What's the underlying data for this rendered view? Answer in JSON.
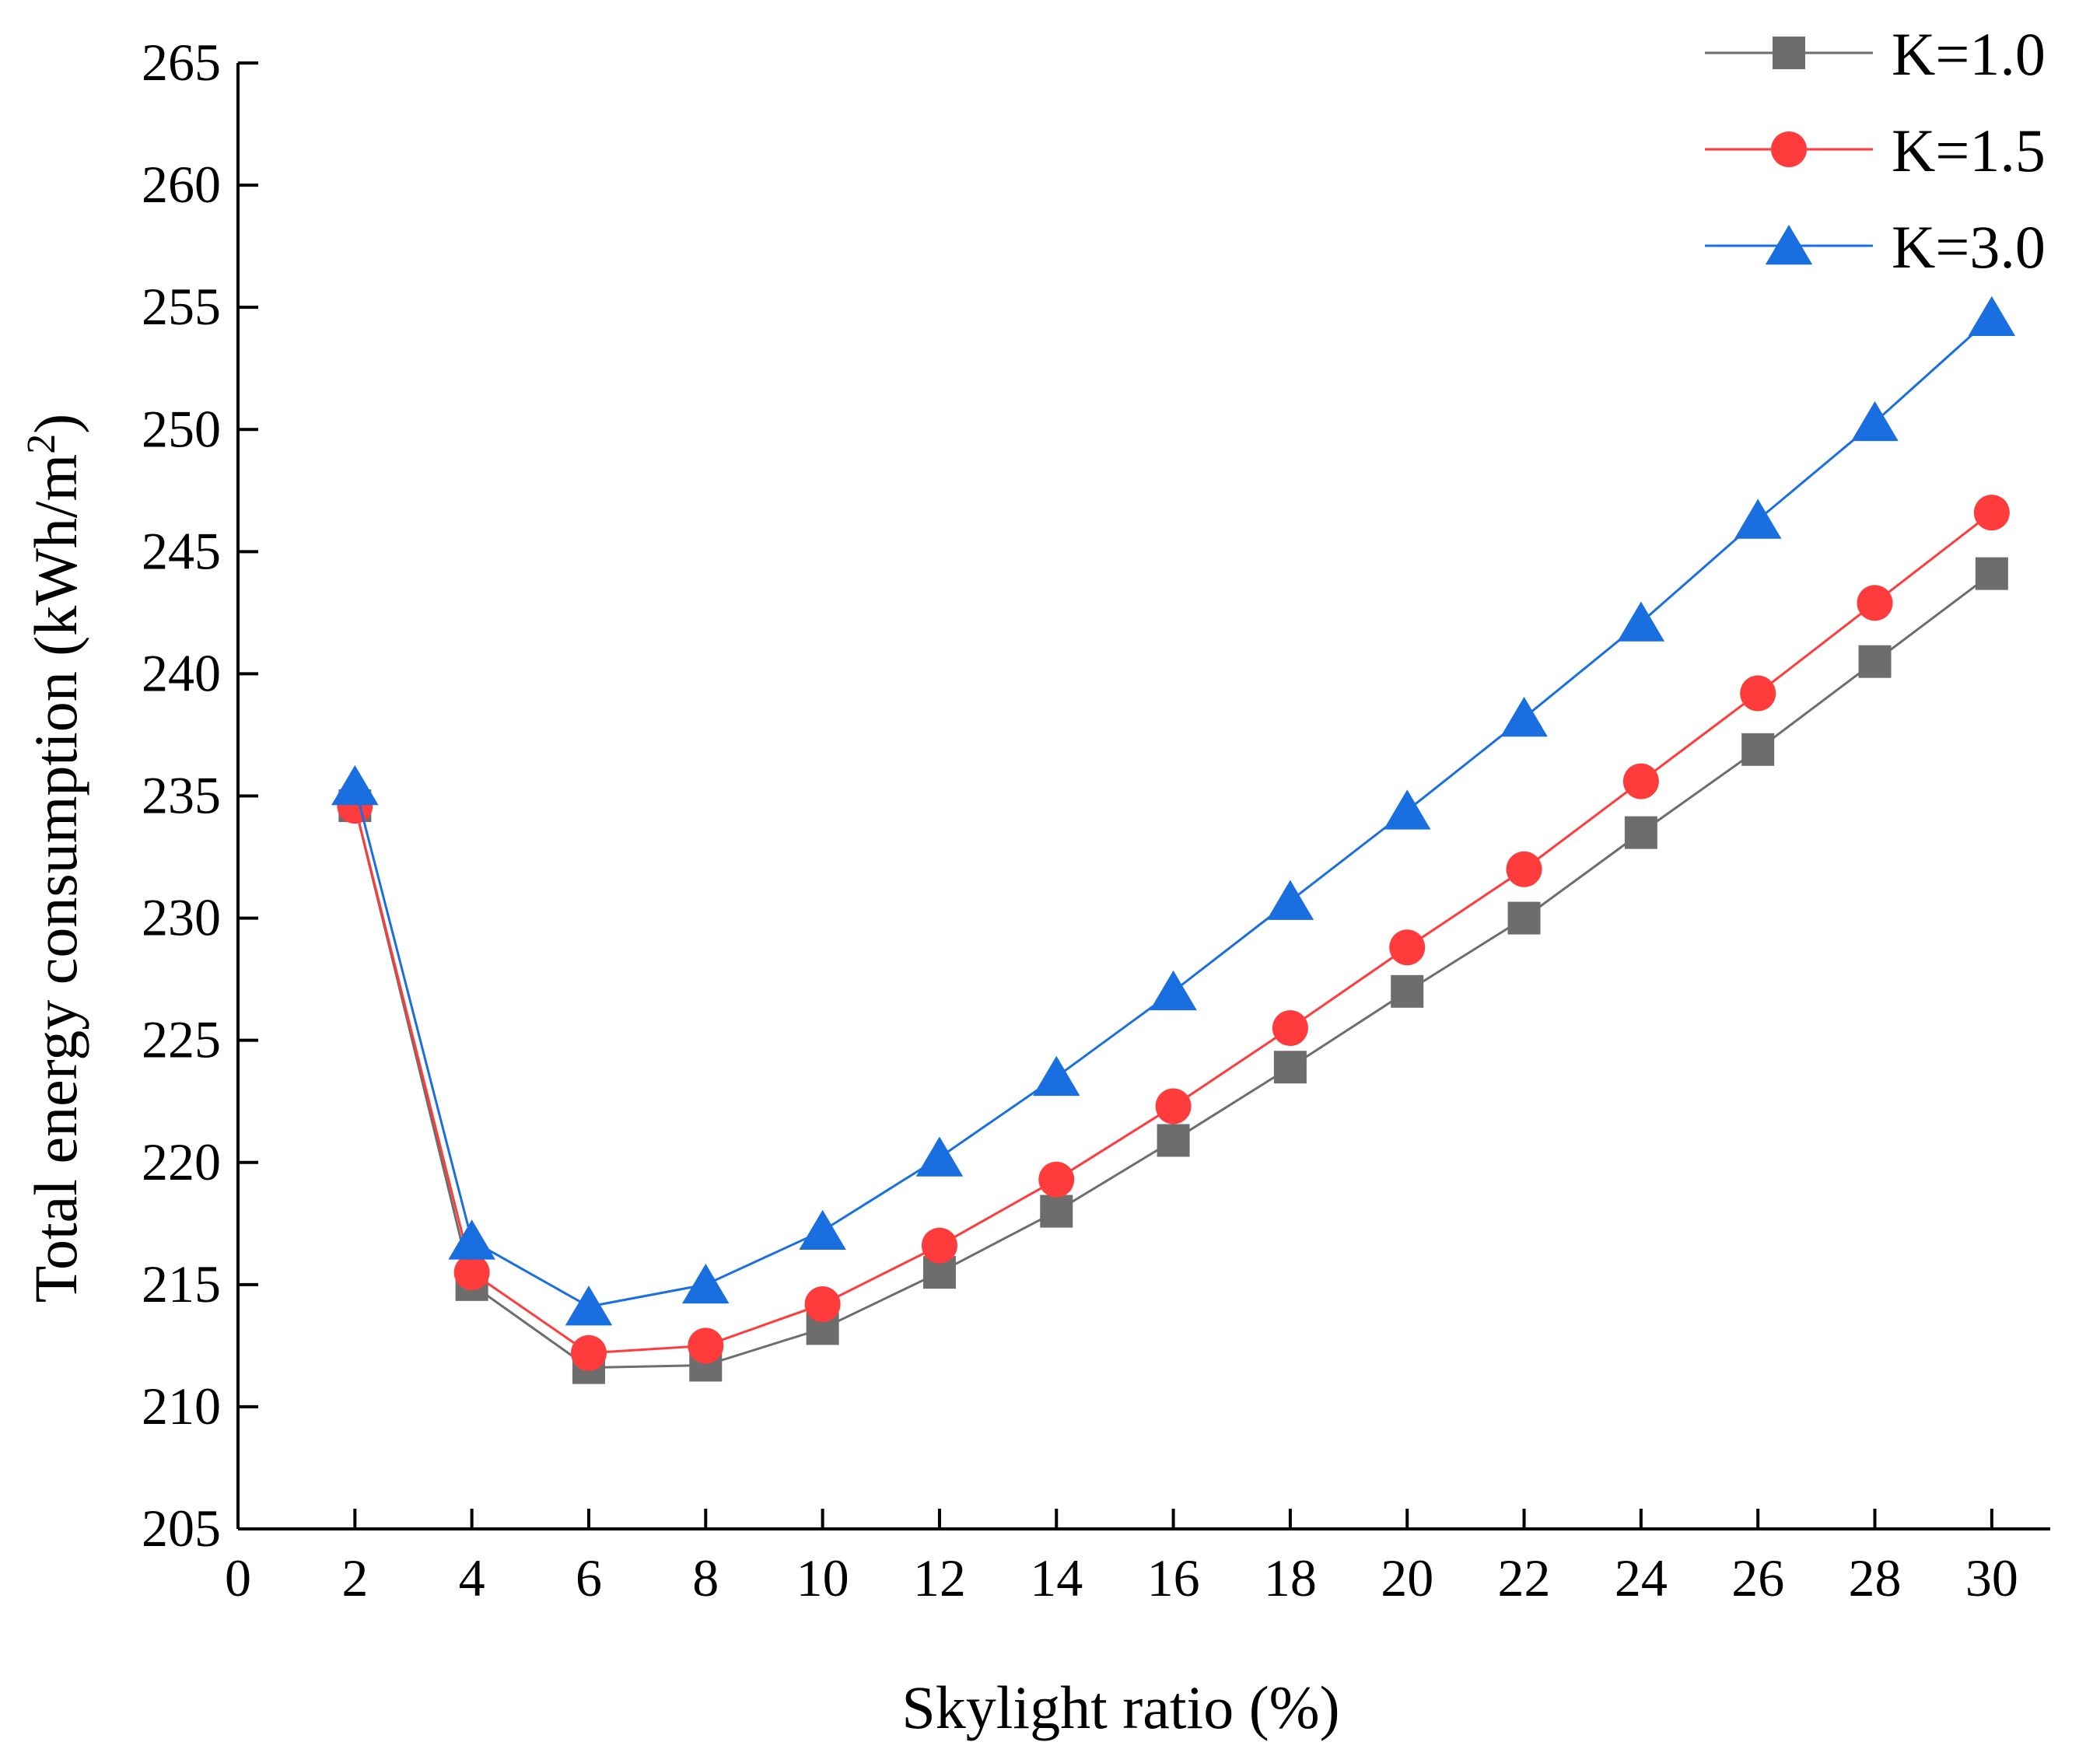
{
  "chart_data": {
    "type": "line",
    "title": "",
    "xlabel": "Skylight ratio (%)",
    "ylabel": "Total energy consumption (kWh/m",
    "ylabel_sup": "2",
    "ylabel_end": ")",
    "xlim": [
      0,
      31
    ],
    "ylim": [
      205,
      265
    ],
    "xticks": [
      0,
      2,
      4,
      6,
      8,
      10,
      12,
      14,
      16,
      18,
      20,
      22,
      24,
      26,
      28,
      30
    ],
    "yticks": [
      205,
      210,
      215,
      220,
      225,
      230,
      235,
      240,
      245,
      250,
      255,
      260,
      265
    ],
    "x": [
      2,
      4,
      6,
      8,
      10,
      12,
      14,
      16,
      18,
      20,
      22,
      24,
      26,
      28,
      30
    ],
    "legend_position": "top-right",
    "grid": false,
    "series": [
      {
        "name": "K=1.0",
        "marker": "square",
        "color": "#6d6d6d",
        "values": [
          234.6,
          215.0,
          211.6,
          211.7,
          213.2,
          215.5,
          218.0,
          220.9,
          223.9,
          227.0,
          230.0,
          233.5,
          236.9,
          240.5,
          244.1
        ]
      },
      {
        "name": "K=1.5",
        "marker": "circle",
        "color": "#ff3b3b",
        "values": [
          234.6,
          215.5,
          212.2,
          212.5,
          214.2,
          216.6,
          219.3,
          222.3,
          225.5,
          228.8,
          232.0,
          235.6,
          239.2,
          242.9,
          246.6
        ]
      },
      {
        "name": "K=3.0",
        "marker": "triangle",
        "color": "#1a6fe0",
        "values": [
          235.4,
          216.8,
          214.1,
          215.0,
          217.2,
          220.2,
          223.5,
          227.0,
          230.7,
          234.4,
          238.2,
          242.1,
          246.3,
          250.3,
          254.6
        ]
      }
    ]
  }
}
